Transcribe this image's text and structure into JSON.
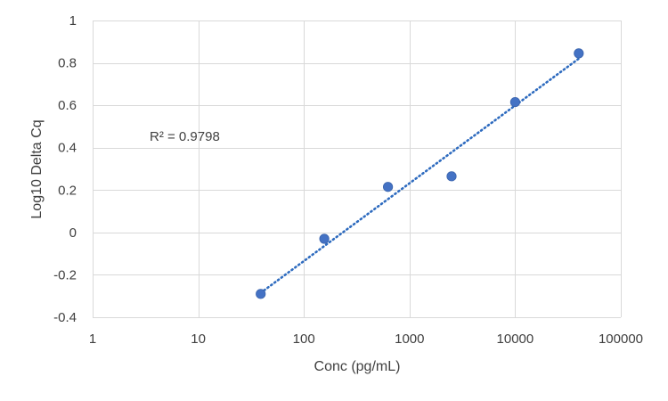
{
  "chart_data": {
    "type": "scatter",
    "title": "",
    "xlabel": "Conc (pg/mL)",
    "ylabel": "Log10 Delta Cq",
    "x_scale": "log10",
    "xlim": [
      1,
      100000
    ],
    "ylim": [
      -0.4,
      1
    ],
    "x_ticks": [
      1,
      10,
      100,
      1000,
      10000,
      100000
    ],
    "x_tick_labels": [
      "1",
      "10",
      "100",
      "1000",
      "10000",
      "100000"
    ],
    "y_ticks": [
      -0.4,
      -0.2,
      0,
      0.2,
      0.4,
      0.6,
      0.8,
      1
    ],
    "y_tick_labels": [
      "-0.4",
      "-0.2",
      "0",
      "0.2",
      "0.4",
      "0.6",
      "0.8",
      "1"
    ],
    "grid": true,
    "legend": "none",
    "series": [
      {
        "points": [
          {
            "x": 39,
            "y": -0.29
          },
          {
            "x": 156,
            "y": -0.03
          },
          {
            "x": 625,
            "y": 0.215
          },
          {
            "x": 2500,
            "y": 0.265
          },
          {
            "x": 10000,
            "y": 0.615
          },
          {
            "x": 40000,
            "y": 0.845
          }
        ],
        "color": "#4472c4"
      }
    ],
    "trendline": {
      "type": "logarithmic",
      "style": "dotted",
      "color": "#2e6bbf",
      "x_start": 39,
      "x_end": 40000,
      "y_start": -0.285,
      "y_end": 0.82
    },
    "annotations": [
      {
        "text": "R² = 0.9798"
      }
    ]
  }
}
